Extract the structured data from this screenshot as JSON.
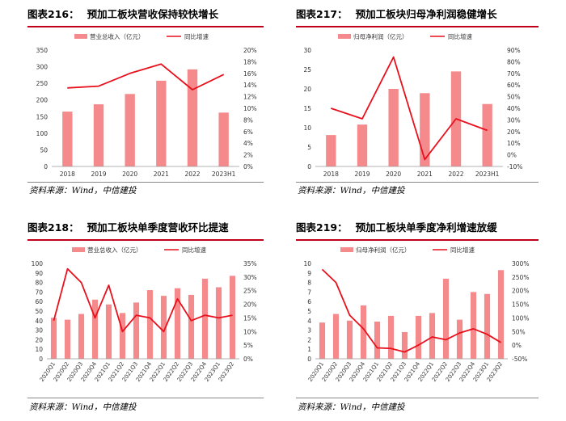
{
  "panels": [
    {
      "number": "图表216：",
      "title": "预加工板块营收保持较快增长",
      "source": "资料来源：Wind，中信建投"
    },
    {
      "number": "图表217：",
      "title": "预加工板块归母净利润稳健增长",
      "source": "资料来源：Wind，中信建投"
    },
    {
      "number": "图表218：",
      "title": "预加工板块单季度营收环比提速",
      "source": "资料来源：Wind，中信建投"
    },
    {
      "number": "图表219：",
      "title": "预加工板块单季度净利增速放缓",
      "source": "资料来源：Wind，中信建投"
    }
  ],
  "colors": {
    "bar": "#f58a8c",
    "line": "#e8101c",
    "rule": "#c0001a",
    "axis": "#999999"
  },
  "chart_data": [
    {
      "type": "bar+line",
      "categories": [
        "2018",
        "2019",
        "2020",
        "2021",
        "2022",
        "2023H1"
      ],
      "series": [
        {
          "name": "营业总收入（亿元）",
          "kind": "bar",
          "axis": "left",
          "values": [
            165,
            187,
            218,
            258,
            292,
            162
          ]
        },
        {
          "name": "同比增速",
          "kind": "line",
          "axis": "right",
          "values": [
            13.5,
            13.8,
            16.0,
            17.6,
            13.2,
            15.8
          ]
        }
      ],
      "left_axis": {
        "min": 0,
        "max": 350,
        "step": 50,
        "format": "{v}"
      },
      "right_axis": {
        "min": 0,
        "max": 20,
        "step": 2,
        "format": "{v}%"
      },
      "legend": "top-center",
      "xlabel_rotate": false
    },
    {
      "type": "bar+line",
      "categories": [
        "2018",
        "2019",
        "2020",
        "2021",
        "2022",
        "2023H1"
      ],
      "series": [
        {
          "name": "归母净利润（亿元）",
          "kind": "bar",
          "axis": "left",
          "values": [
            8.1,
            10.8,
            20.0,
            18.9,
            24.5,
            16.1
          ]
        },
        {
          "name": "同比增速",
          "kind": "line",
          "axis": "right",
          "values": [
            40,
            31,
            84,
            -4,
            31,
            21
          ]
        }
      ],
      "left_axis": {
        "min": 0,
        "max": 30,
        "step": 5,
        "format": "{v}"
      },
      "right_axis": {
        "min": -10,
        "max": 90,
        "step": 10,
        "format": "{v}%"
      },
      "legend": "top-center",
      "xlabel_rotate": false
    },
    {
      "type": "bar+line",
      "categories": [
        "2020Q1",
        "2020Q2",
        "2020Q3",
        "2020Q4",
        "2021Q1",
        "2021Q2",
        "2021Q3",
        "2021Q4",
        "2022Q1",
        "2022Q2",
        "2022Q3",
        "2022Q4",
        "2023Q1",
        "2023Q2"
      ],
      "series": [
        {
          "name": "营业总收入（亿元）",
          "kind": "bar",
          "axis": "left",
          "values": [
            43,
            41,
            47,
            62,
            57,
            48,
            59,
            72,
            66,
            74,
            67,
            84,
            75,
            87
          ]
        },
        {
          "name": "同比增速",
          "kind": "line",
          "axis": "right",
          "values": [
            14,
            33,
            28,
            15,
            27,
            10,
            16,
            15,
            10,
            22,
            14,
            16,
            15,
            16
          ]
        }
      ],
      "left_axis": {
        "min": 0,
        "max": 100,
        "step": 10,
        "format": "{v}"
      },
      "right_axis": {
        "min": 0,
        "max": 35,
        "step": 5,
        "format": "{v}%"
      },
      "legend": "top-center",
      "xlabel_rotate": true
    },
    {
      "type": "bar+line",
      "categories": [
        "2020Q1",
        "2020Q2",
        "2020Q3",
        "2020Q4",
        "2021Q1",
        "2021Q2",
        "2021Q3",
        "2021Q4",
        "2022Q1",
        "2022Q2",
        "2022Q3",
        "2022Q4",
        "2023Q1",
        "2023Q2"
      ],
      "series": [
        {
          "name": "归母净利润（亿元）",
          "kind": "bar",
          "axis": "left",
          "values": [
            3.8,
            4.7,
            4.0,
            5.6,
            3.9,
            4.5,
            2.8,
            4.5,
            4.8,
            8.4,
            4.1,
            7.0,
            6.8,
            9.3
          ]
        },
        {
          "name": "同比增速",
          "kind": "line",
          "axis": "right",
          "values": [
            278,
            230,
            110,
            60,
            -10,
            -12,
            -25,
            0,
            30,
            20,
            45,
            60,
            40,
            10
          ]
        }
      ],
      "left_axis": {
        "min": 0,
        "max": 10,
        "step": 1,
        "format": "{v}"
      },
      "right_axis": {
        "min": -50,
        "max": 300,
        "step": 50,
        "format": "{v}%"
      },
      "legend": "top-center",
      "xlabel_rotate": true
    }
  ]
}
